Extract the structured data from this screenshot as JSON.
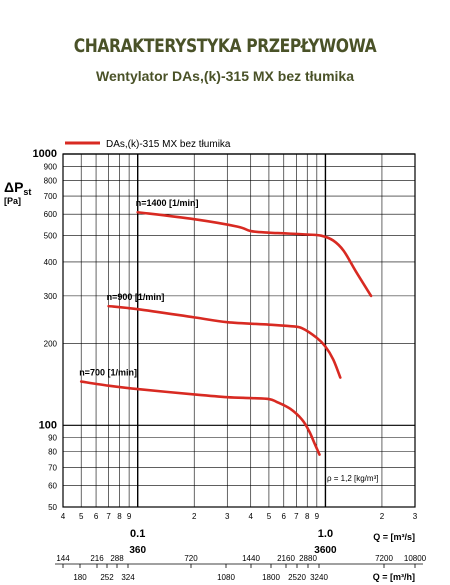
{
  "header": {
    "title": "CHARAKTERYSTYKA PRZEPŁYWOWA",
    "subtitle": "Wentylator DAs,(k)-315 MX bez tłumika"
  },
  "colors": {
    "curve": "#d82a22",
    "grid": "#000000",
    "title": "#4a5228"
  },
  "chart_data": {
    "type": "line",
    "legend": {
      "label": "DAs,(k)-315 MX bez tłumika",
      "position": "top-left"
    },
    "yaxis": {
      "label_main": "ΔP",
      "label_sub": "st",
      "unit": "[Pa]",
      "scale": "log",
      "ylim": [
        50,
        1000
      ],
      "ticks": [
        {
          "v": 50,
          "t": "50",
          "major": false
        },
        {
          "v": 60,
          "t": "60",
          "major": false
        },
        {
          "v": 70,
          "t": "70",
          "major": false
        },
        {
          "v": 80,
          "t": "80",
          "major": false
        },
        {
          "v": 90,
          "t": "90",
          "major": false
        },
        {
          "v": 100,
          "t": "100",
          "major": true
        },
        {
          "v": 200,
          "t": "200",
          "major": false
        },
        {
          "v": 300,
          "t": "300",
          "major": false
        },
        {
          "v": 400,
          "t": "400",
          "major": false
        },
        {
          "v": 500,
          "t": "500",
          "major": false
        },
        {
          "v": 600,
          "t": "600",
          "major": false
        },
        {
          "v": 700,
          "t": "700",
          "major": false
        },
        {
          "v": 800,
          "t": "800",
          "major": false
        },
        {
          "v": 900,
          "t": "900",
          "major": false
        },
        {
          "v": 1000,
          "t": "1000",
          "major": true
        }
      ]
    },
    "xaxis": {
      "scale": "log",
      "xlim": [
        0.04,
        3
      ],
      "unit_m3s": "Q = [m³/s]",
      "unit_m3h": "Q = [m³/h]",
      "ticks": [
        {
          "v": 0.04,
          "t": "4"
        },
        {
          "v": 0.05,
          "t": "5"
        },
        {
          "v": 0.06,
          "t": "6"
        },
        {
          "v": 0.07,
          "t": "7"
        },
        {
          "v": 0.08,
          "t": "8"
        },
        {
          "v": 0.09,
          "t": "9"
        },
        {
          "v": 0.2,
          "t": "2"
        },
        {
          "v": 0.3,
          "t": "3"
        },
        {
          "v": 0.4,
          "t": "4"
        },
        {
          "v": 0.5,
          "t": "5"
        },
        {
          "v": 0.6,
          "t": "6"
        },
        {
          "v": 0.7,
          "t": "7"
        },
        {
          "v": 0.8,
          "t": "8"
        },
        {
          "v": 0.9,
          "t": "9"
        },
        {
          "v": 2,
          "t": "2"
        },
        {
          "v": 3,
          "t": "3"
        }
      ],
      "major_ticks": [
        {
          "v": 0.1,
          "t": "0.1",
          "sub": "360"
        },
        {
          "v": 1,
          "t": "1.0",
          "sub": "3600"
        }
      ],
      "m3h_upper": [
        "144",
        "216",
        "288",
        "720",
        "1440",
        "2160",
        "2880",
        "7200",
        "10800"
      ],
      "m3h_lower": [
        "180",
        "252",
        "324",
        "1080",
        "1800",
        "2520",
        "3240"
      ]
    },
    "annotation": "ρ = 1,2 [kg/m³]",
    "series": [
      {
        "name": "n=1400 [1/min]",
        "x": [
          0.1,
          0.2,
          0.34,
          0.4,
          0.5,
          0.6,
          0.8,
          0.95,
          1.1,
          1.25,
          1.45,
          1.75
        ],
        "y": [
          610,
          575,
          540,
          520,
          513,
          510,
          505,
          500,
          480,
          440,
          370,
          300
        ]
      },
      {
        "name": "n=900 [1/min]",
        "x": [
          0.07,
          0.1,
          0.2,
          0.3,
          0.5,
          0.65,
          0.75,
          0.9,
          1.0,
          1.1,
          1.2
        ],
        "y": [
          275,
          268,
          250,
          240,
          235,
          232,
          228,
          210,
          195,
          175,
          150
        ]
      },
      {
        "name": "n=700 [1/min]",
        "x": [
          0.05,
          0.07,
          0.1,
          0.2,
          0.3,
          0.4,
          0.5,
          0.55,
          0.65,
          0.75,
          0.82,
          0.88,
          0.93
        ],
        "y": [
          145,
          140,
          136,
          130,
          127,
          126,
          125,
          122,
          115,
          105,
          95,
          85,
          78
        ]
      }
    ]
  }
}
